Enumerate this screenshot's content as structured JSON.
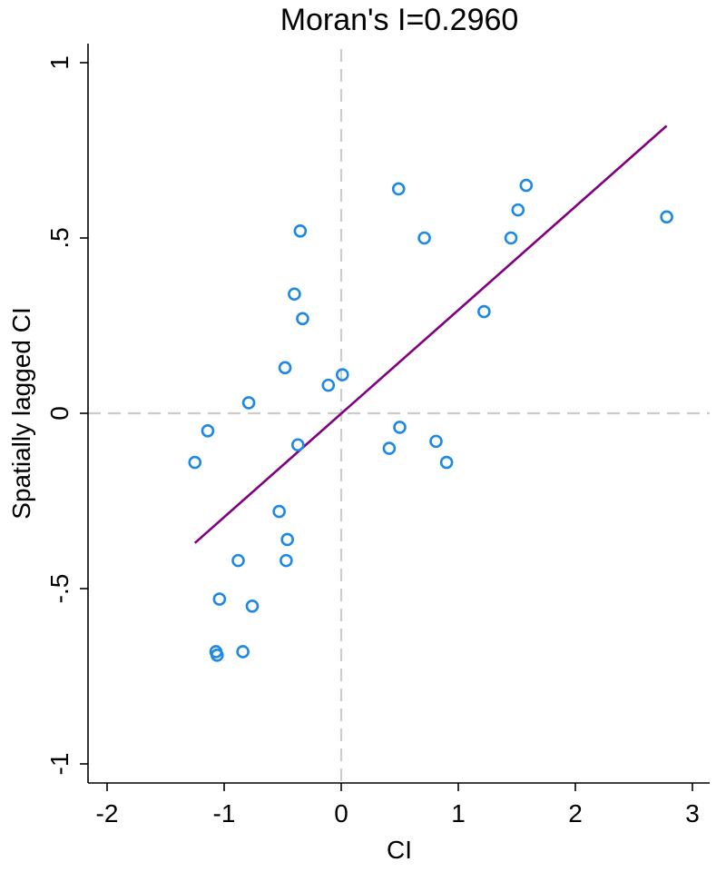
{
  "chart_data": {
    "type": "scatter",
    "title": "Moran's I=0.2960",
    "xlabel": "CI",
    "ylabel": "Spatially lagged CI",
    "xlim": [
      -2,
      3
    ],
    "ylim": [
      -1,
      1
    ],
    "x_ticks": [
      -2,
      -1,
      0,
      1,
      2,
      3
    ],
    "x_tick_labels": [
      "-2",
      "-1",
      "0",
      "1",
      "2",
      "3"
    ],
    "y_ticks": [
      -1,
      -0.5,
      0,
      0.5,
      1
    ],
    "y_tick_labels": [
      "-1",
      "-.5",
      "0",
      ".5",
      "1"
    ],
    "reference_lines": {
      "x": 0,
      "y": 0,
      "style": "dashed",
      "color": "#cccccc"
    },
    "marker_color": "#1e88e5",
    "fit_line_color": "#800080",
    "fit_line": {
      "x": [
        -1.25,
        2.78
      ],
      "y": [
        -0.37,
        0.82
      ]
    },
    "series": [
      {
        "points": [
          [
            -1.25,
            -0.14
          ],
          [
            -1.14,
            -0.05
          ],
          [
            -0.79,
            0.03
          ],
          [
            -0.48,
            0.13
          ],
          [
            -0.4,
            0.34
          ],
          [
            -0.35,
            0.52
          ],
          [
            -0.33,
            0.27
          ],
          [
            -0.37,
            -0.09
          ],
          [
            -0.11,
            0.08
          ],
          [
            0.01,
            0.11
          ],
          [
            0.49,
            0.64
          ],
          [
            0.71,
            0.5
          ],
          [
            1.22,
            0.29
          ],
          [
            1.45,
            0.5
          ],
          [
            1.51,
            0.58
          ],
          [
            1.58,
            0.65
          ],
          [
            2.78,
            0.56
          ],
          [
            0.5,
            -0.04
          ],
          [
            0.41,
            -0.1
          ],
          [
            0.81,
            -0.08
          ],
          [
            0.9,
            -0.14
          ],
          [
            -0.53,
            -0.28
          ],
          [
            -0.46,
            -0.36
          ],
          [
            -0.47,
            -0.42
          ],
          [
            -0.88,
            -0.42
          ],
          [
            -1.04,
            -0.53
          ],
          [
            -0.76,
            -0.55
          ],
          [
            -1.07,
            -0.68
          ],
          [
            -1.06,
            -0.69
          ],
          [
            -0.84,
            -0.68
          ]
        ]
      }
    ]
  }
}
